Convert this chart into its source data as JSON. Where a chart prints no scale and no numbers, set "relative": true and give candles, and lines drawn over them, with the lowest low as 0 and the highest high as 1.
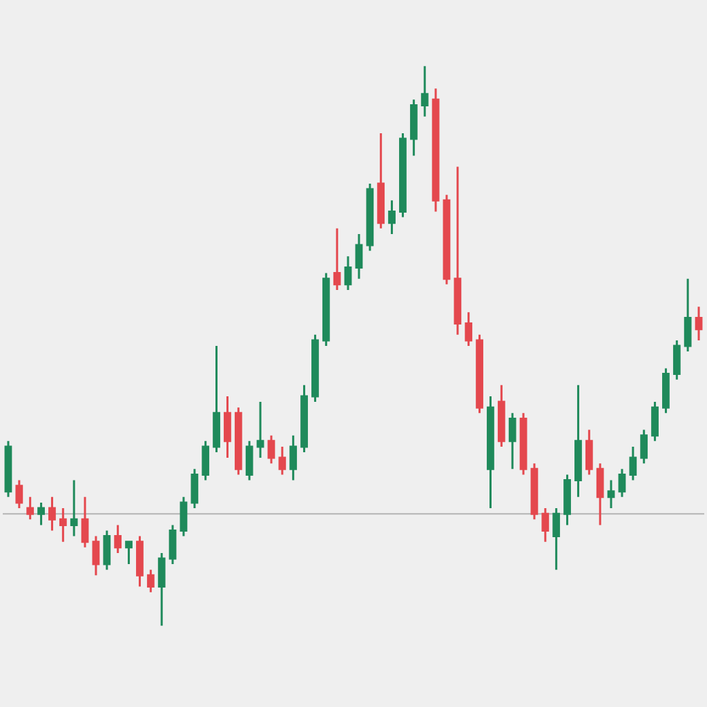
{
  "chart_data": {
    "type": "candlestick",
    "relative": true,
    "categories": [
      null,
      null,
      null,
      null,
      null,
      null,
      null,
      null,
      null,
      null,
      null,
      null,
      null,
      null,
      null,
      null,
      null,
      null,
      null,
      null,
      null,
      null,
      null,
      null,
      null,
      null,
      null,
      null,
      null,
      null,
      null,
      null,
      null,
      null,
      null,
      null,
      null,
      null,
      null,
      null,
      null,
      null,
      null,
      null,
      null,
      null,
      null,
      null,
      null,
      null,
      null,
      null,
      null,
      null,
      null,
      null,
      null,
      null,
      null,
      null,
      null,
      null,
      null,
      null
    ],
    "ohlc": [
      [
        0.24,
        0.33,
        0.23,
        0.32
      ],
      [
        0.25,
        0.26,
        0.21,
        0.22
      ],
      [
        0.21,
        0.23,
        0.19,
        0.2
      ],
      [
        0.2,
        0.22,
        0.18,
        0.21
      ],
      [
        0.21,
        0.23,
        0.17,
        0.19
      ],
      [
        0.19,
        0.21,
        0.15,
        0.18
      ],
      [
        0.18,
        0.26,
        0.16,
        0.19
      ],
      [
        0.19,
        0.23,
        0.14,
        0.15
      ],
      [
        0.15,
        0.16,
        0.09,
        0.11
      ],
      [
        0.11,
        0.17,
        0.1,
        0.16
      ],
      [
        0.16,
        0.18,
        0.13,
        0.14
      ],
      [
        0.14,
        0.15,
        0.11,
        0.15
      ],
      [
        0.15,
        0.16,
        0.07,
        0.09
      ],
      [
        0.09,
        0.1,
        0.06,
        0.07
      ],
      [
        0.07,
        0.13,
        0,
        0.12
      ],
      [
        0.12,
        0.18,
        0.11,
        0.17
      ],
      [
        0.17,
        0.23,
        0.16,
        0.22
      ],
      [
        0.22,
        0.28,
        0.21,
        0.27
      ],
      [
        0.27,
        0.33,
        0.26,
        0.32
      ],
      [
        0.32,
        0.5,
        0.31,
        0.38
      ],
      [
        0.38,
        0.41,
        0.3,
        0.33
      ],
      [
        0.38,
        0.39,
        0.27,
        0.28
      ],
      [
        0.27,
        0.33,
        0.26,
        0.32
      ],
      [
        0.32,
        0.4,
        0.3,
        0.33
      ],
      [
        0.33,
        0.34,
        0.29,
        0.3
      ],
      [
        0.3,
        0.32,
        0.27,
        0.28
      ],
      [
        0.28,
        0.34,
        0.26,
        0.32
      ],
      [
        0.32,
        0.43,
        0.31,
        0.41
      ],
      [
        0.41,
        0.52,
        0.4,
        0.51
      ],
      [
        0.51,
        0.63,
        0.5,
        0.62
      ],
      [
        0.63,
        0.71,
        0.6,
        0.61
      ],
      [
        0.61,
        0.66,
        0.6,
        0.64
      ],
      [
        0.64,
        0.7,
        0.62,
        0.68
      ],
      [
        0.68,
        0.79,
        0.67,
        0.78
      ],
      [
        0.79,
        0.88,
        0.71,
        0.72
      ],
      [
        0.72,
        0.76,
        0.7,
        0.74
      ],
      [
        0.74,
        0.88,
        0.73,
        0.87
      ],
      [
        0.87,
        0.94,
        0.84,
        0.93
      ],
      [
        0.93,
        1,
        0.91,
        0.95
      ],
      [
        0.94,
        0.96,
        0.74,
        0.76
      ],
      [
        0.76,
        0.77,
        0.61,
        0.62
      ],
      [
        0.62,
        0.82,
        0.52,
        0.54
      ],
      [
        0.54,
        0.56,
        0.5,
        0.51
      ],
      [
        0.51,
        0.52,
        0.38,
        0.39
      ],
      [
        0.28,
        0.41,
        0.21,
        0.39
      ],
      [
        0.4,
        0.43,
        0.32,
        0.33
      ],
      [
        0.33,
        0.38,
        0.28,
        0.37
      ],
      [
        0.37,
        0.38,
        0.27,
        0.28
      ],
      [
        0.28,
        0.29,
        0.19,
        0.2
      ],
      [
        0.2,
        0.21,
        0.15,
        0.17
      ],
      [
        0.16,
        0.21,
        0.1,
        0.2
      ],
      [
        0.2,
        0.27,
        0.18,
        0.26
      ],
      [
        0.26,
        0.43,
        0.23,
        0.33
      ],
      [
        0.33,
        0.35,
        0.27,
        0.28
      ],
      [
        0.28,
        0.29,
        0.18,
        0.23
      ],
      [
        0.23,
        0.26,
        0.21,
        0.24
      ],
      [
        0.24,
        0.28,
        0.23,
        0.27
      ],
      [
        0.27,
        0.32,
        0.26,
        0.3
      ],
      [
        0.3,
        0.35,
        0.29,
        0.34
      ],
      [
        0.34,
        0.4,
        0.33,
        0.39
      ],
      [
        0.39,
        0.46,
        0.38,
        0.45
      ],
      [
        0.45,
        0.51,
        0.44,
        0.5
      ],
      [
        0.5,
        0.62,
        0.49,
        0.55
      ],
      [
        0.55,
        0.57,
        0.51,
        0.53
      ]
    ],
    "colors": [
      "#1f8a5b",
      "#e4484e",
      "#e4484e",
      "#1f8a5b",
      "#e4484e",
      "#e4484e",
      "#1f8a5b",
      "#e4484e",
      "#e4484e",
      "#1f8a5b",
      "#e4484e",
      "#1f8a5b",
      "#e4484e",
      "#e4484e",
      "#1f8a5b",
      "#1f8a5b",
      "#1f8a5b",
      "#1f8a5b",
      "#1f8a5b",
      "#1f8a5b",
      "#e4484e",
      "#e4484e",
      "#1f8a5b",
      "#1f8a5b",
      "#e4484e",
      "#e4484e",
      "#1f8a5b",
      "#1f8a5b",
      "#1f8a5b",
      "#1f8a5b",
      "#e4484e",
      "#1f8a5b",
      "#1f8a5b",
      "#1f8a5b",
      "#e4484e",
      "#1f8a5b",
      "#1f8a5b",
      "#1f8a5b",
      "#1f8a5b",
      "#e4484e",
      "#e4484e",
      "#e4484e",
      "#e4484e",
      "#e4484e",
      "#1f8a5b",
      "#e4484e",
      "#1f8a5b",
      "#e4484e",
      "#e4484e",
      "#e4484e",
      "#1f8a5b",
      "#1f8a5b",
      "#1f8a5b",
      "#e4484e",
      "#e4484e",
      "#1f8a5b",
      "#1f8a5b",
      "#1f8a5b",
      "#1f8a5b",
      "#1f8a5b",
      "#1f8a5b",
      "#1f8a5b",
      "#1f8a5b",
      "#e4484e"
    ],
    "ref_lines": [
      {
        "axis": "y",
        "value": 0.2,
        "color": "#b4b4b4"
      }
    ]
  }
}
